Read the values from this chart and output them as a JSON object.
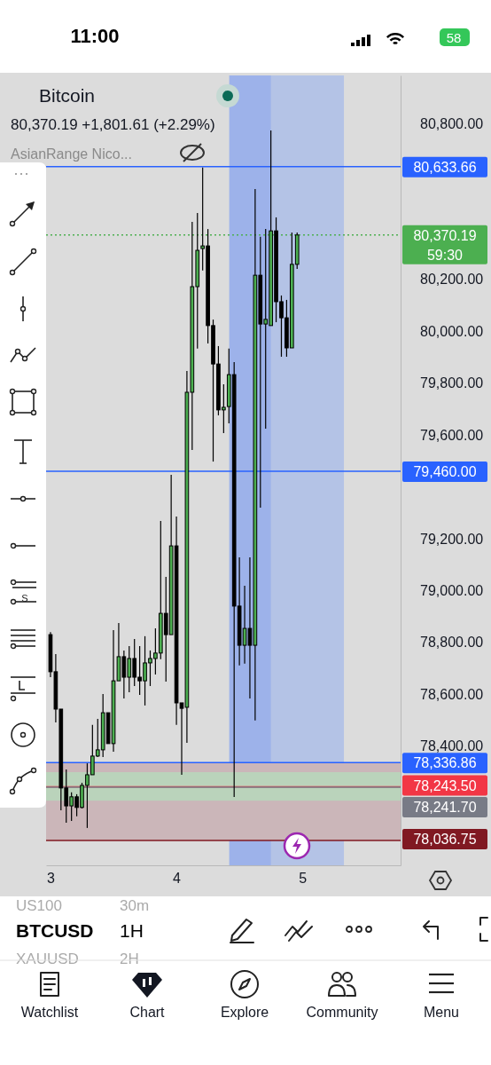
{
  "chart_data": {
    "type": "candlestick",
    "title": "Bitcoin",
    "subtitle": "80,370.19 +1,801.61 (+2.29%)",
    "x": [
      3,
      3.0417,
      3.0833,
      3.125,
      3.1667,
      3.2083,
      3.25,
      3.2917,
      3.3333,
      3.375,
      3.4167,
      3.4583,
      3.5,
      3.5417,
      3.5833,
      3.625,
      3.6667,
      3.7083,
      3.75,
      3.7917,
      3.8333,
      3.875,
      3.9167,
      3.9583,
      4,
      4.0417,
      4.0833,
      4.125,
      4.1667,
      4.2083,
      4.25,
      4.2917,
      4.3333,
      4.375,
      4.4167,
      4.4583,
      4.5,
      4.5417,
      4.5833,
      4.625,
      4.6667,
      4.7083,
      4.75,
      4.7917,
      4.8333,
      4.875,
      4.9167,
      4.9583
    ],
    "ohlc": [
      [
        78830,
        78840,
        78666,
        78687
      ],
      [
        78687,
        78755,
        78492,
        78543
      ],
      [
        78543,
        78543,
        78153,
        78239
      ],
      [
        78239,
        78310,
        78105,
        78170
      ],
      [
        78170,
        78222,
        78112,
        78205
      ],
      [
        78205,
        78215,
        78130,
        78164
      ],
      [
        78164,
        78259,
        78160,
        78249
      ],
      [
        78249,
        78334,
        78085,
        78290
      ],
      [
        78290,
        78482,
        78290,
        78362
      ],
      [
        78362,
        78505,
        78358,
        78386
      ],
      [
        78386,
        78601,
        78358,
        78529
      ],
      [
        78529,
        78529,
        78410,
        78410
      ],
      [
        78410,
        78847,
        78379,
        78652
      ],
      [
        78652,
        78875,
        78652,
        78745
      ],
      [
        78745,
        78769,
        78584,
        78666
      ],
      [
        78666,
        78786,
        78608,
        78738
      ],
      [
        78738,
        78813,
        78632,
        78666
      ],
      [
        78666,
        78786,
        78598,
        78652
      ],
      [
        78652,
        78824,
        78557,
        78721
      ],
      [
        78721,
        78769,
        78632,
        78738
      ],
      [
        78738,
        78854,
        78676,
        78759
      ],
      [
        78759,
        79268,
        78735,
        78912
      ],
      [
        78912,
        79053,
        78649,
        78830
      ],
      [
        78830,
        79446,
        78830,
        79172
      ],
      [
        79172,
        79285,
        78482,
        78567
      ],
      [
        78567,
        78567,
        78290,
        78546
      ],
      [
        78550,
        79846,
        78413,
        79764
      ],
      [
        79764,
        80421,
        79542,
        80171
      ],
      [
        80171,
        80455,
        79932,
        80311
      ],
      [
        80318,
        80630,
        80233,
        80328
      ],
      [
        80328,
        80393,
        79952,
        80021
      ],
      [
        80021,
        80044,
        79497,
        79873
      ],
      [
        79873,
        79942,
        79675,
        79696
      ],
      [
        79696,
        79795,
        79607,
        79706
      ],
      [
        79709,
        79932,
        79644,
        79832
      ],
      [
        79832,
        79880,
        78204,
        78940
      ],
      [
        78940,
        79128,
        78711,
        78789
      ],
      [
        78789,
        79018,
        78718,
        78854
      ],
      [
        78854,
        79128,
        78584,
        78789
      ],
      [
        78789,
        80547,
        78499,
        80215
      ],
      [
        80215,
        80363,
        79319,
        80027
      ],
      [
        80027,
        80393,
        79624,
        80045
      ],
      [
        80021,
        80773,
        80021,
        80386
      ],
      [
        80386,
        80438,
        80034,
        80113
      ],
      [
        80113,
        80137,
        79901,
        80051
      ],
      [
        80051,
        80120,
        79901,
        79935
      ],
      [
        79935,
        80380,
        79935,
        80257
      ],
      [
        80257,
        80380,
        80239,
        80370.19
      ]
    ],
    "xlim": [
      2.965,
      5.78
    ],
    "xticks": [
      3,
      4,
      5
    ],
    "ylim": [
      77941,
      80985
    ],
    "yticks": [
      {
        "value": 78400,
        "label": "78,400.00"
      },
      {
        "value": 78600,
        "label": "78,600.00"
      },
      {
        "value": 78800,
        "label": "78,800.00"
      },
      {
        "value": 79000,
        "label": "79,000.00"
      },
      {
        "value": 79200,
        "label": "79,200.00"
      },
      {
        "value": 79600,
        "label": "79,600.00"
      },
      {
        "value": 79800,
        "label": "79,800.00"
      },
      {
        "value": 80000,
        "label": "80,000.00"
      },
      {
        "value": 80200,
        "label": "80,200.00"
      },
      {
        "value": 80800,
        "label": "80,800.00"
      }
    ],
    "bands": [
      {
        "axis": "x",
        "from": 4.42,
        "to": 5.33,
        "color": "#b4c3e6"
      },
      {
        "axis": "x",
        "from": 4.42,
        "to": 4.75,
        "color": "#9db2ea"
      },
      {
        "axis": "y",
        "from": 78036.75,
        "to": 78336.86,
        "color": "#cbb6b9"
      },
      {
        "axis": "y",
        "from": 78190,
        "to": 78300,
        "color": "#bad3bb"
      }
    ],
    "ref_lines": [
      {
        "axis": "y",
        "value": 80633.66,
        "label": "80,633.66",
        "color": "#2962ff"
      },
      {
        "axis": "y",
        "value": 80370.19,
        "label": "80,370.19",
        "color": "#4caf50",
        "line_style": "dotted"
      },
      {
        "axis": "y",
        "value": 79460,
        "label": "79,460.00",
        "color": "#2962ff"
      },
      {
        "axis": "y",
        "value": 78336.86,
        "label": "78,336.86",
        "color": "#2962ff"
      },
      {
        "axis": "y",
        "value": 78243.5,
        "label": "78,243.50",
        "color": "#f23645"
      },
      {
        "axis": "y",
        "value": 78241.7,
        "label": "78,241.70",
        "color": "#787b86"
      },
      {
        "axis": "y",
        "value": 78036.75,
        "label": "78,036.75",
        "color": "#801922"
      }
    ],
    "annotations": [
      "11:00",
      "58",
      "AsianRange Nico...",
      "59:30",
      "US100",
      "30m",
      "BTCUSD",
      "1H",
      "XAUUSD",
      "2H",
      "Watchlist",
      "Chart",
      "Explore",
      "Community",
      "Menu",
      "S"
    ]
  }
}
